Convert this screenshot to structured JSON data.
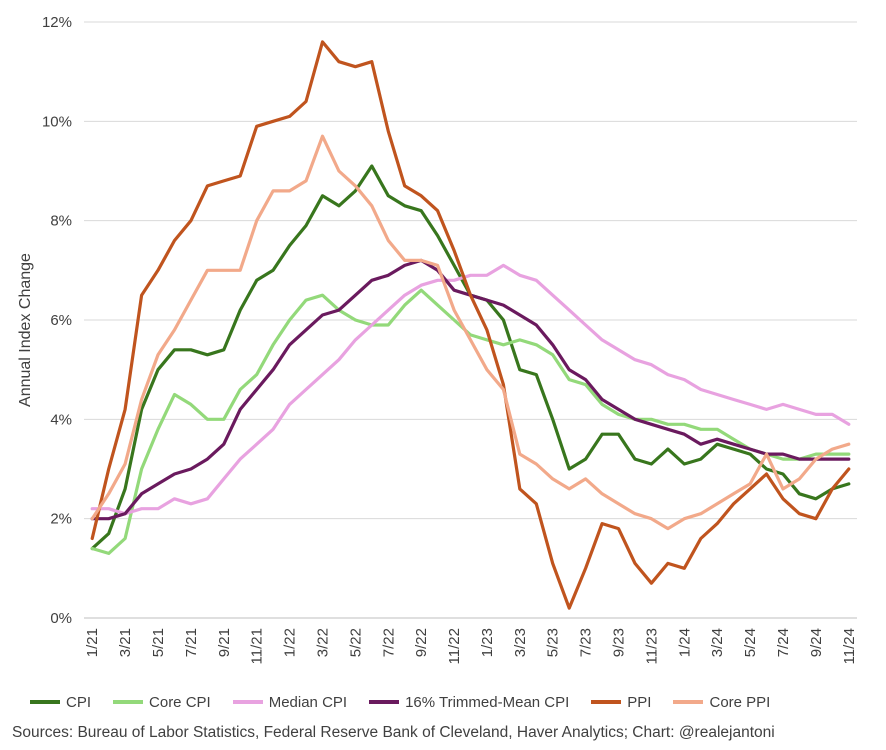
{
  "chart_data": {
    "type": "line",
    "ylabel": "Annual Index Change",
    "ylim": [
      0,
      12
    ],
    "yticks": [
      "0%",
      "2%",
      "4%",
      "6%",
      "8%",
      "10%",
      "12%"
    ],
    "grid": true,
    "legend_position": "bottom",
    "x": [
      "1/21",
      "2/21",
      "3/21",
      "4/21",
      "5/21",
      "6/21",
      "7/21",
      "8/21",
      "9/21",
      "10/21",
      "11/21",
      "12/21",
      "1/22",
      "2/22",
      "3/22",
      "4/22",
      "5/22",
      "6/22",
      "7/22",
      "8/22",
      "9/22",
      "10/22",
      "11/22",
      "12/22",
      "1/23",
      "2/23",
      "3/23",
      "4/23",
      "5/23",
      "6/23",
      "7/23",
      "8/23",
      "9/23",
      "10/23",
      "11/23",
      "12/23",
      "1/24",
      "2/24",
      "3/24",
      "4/24",
      "5/24",
      "6/24",
      "7/24",
      "8/24",
      "9/24",
      "10/24",
      "11/24"
    ],
    "xtick_labels": [
      "1/21",
      "3/21",
      "5/21",
      "7/21",
      "9/21",
      "11/21",
      "1/22",
      "3/22",
      "5/22",
      "7/22",
      "9/22",
      "11/22",
      "1/23",
      "3/23",
      "5/23",
      "7/23",
      "9/23",
      "11/23",
      "1/24",
      "3/24",
      "5/24",
      "7/24",
      "9/24",
      "11/24"
    ],
    "series": [
      {
        "name": "CPI",
        "color": "#38761d",
        "values": [
          1.4,
          1.7,
          2.6,
          4.2,
          5.0,
          5.4,
          5.4,
          5.3,
          5.4,
          6.2,
          6.8,
          7.0,
          7.5,
          7.9,
          8.5,
          8.3,
          8.6,
          9.1,
          8.5,
          8.3,
          8.2,
          7.7,
          7.1,
          6.5,
          6.4,
          6.0,
          5.0,
          4.9,
          4.0,
          3.0,
          3.2,
          3.7,
          3.7,
          3.2,
          3.1,
          3.4,
          3.1,
          3.2,
          3.5,
          3.4,
          3.3,
          3.0,
          2.9,
          2.5,
          2.4,
          2.6,
          2.7
        ]
      },
      {
        "name": "Core CPI",
        "color": "#93d97a",
        "values": [
          1.4,
          1.3,
          1.6,
          3.0,
          3.8,
          4.5,
          4.3,
          4.0,
          4.0,
          4.6,
          4.9,
          5.5,
          6.0,
          6.4,
          6.5,
          6.2,
          6.0,
          5.9,
          5.9,
          6.3,
          6.6,
          6.3,
          6.0,
          5.7,
          5.6,
          5.5,
          5.6,
          5.5,
          5.3,
          4.8,
          4.7,
          4.3,
          4.1,
          4.0,
          4.0,
          3.9,
          3.9,
          3.8,
          3.8,
          3.6,
          3.4,
          3.3,
          3.2,
          3.2,
          3.3,
          3.3,
          3.3
        ]
      },
      {
        "name": "Median CPI",
        "color": "#e8a2e0",
        "values": [
          2.2,
          2.2,
          2.1,
          2.2,
          2.2,
          2.4,
          2.3,
          2.4,
          2.8,
          3.2,
          3.5,
          3.8,
          4.3,
          4.6,
          4.9,
          5.2,
          5.6,
          5.9,
          6.2,
          6.5,
          6.7,
          6.8,
          6.8,
          6.9,
          6.9,
          7.1,
          6.9,
          6.8,
          6.5,
          6.2,
          5.9,
          5.6,
          5.4,
          5.2,
          5.1,
          4.9,
          4.8,
          4.6,
          4.5,
          4.4,
          4.3,
          4.2,
          4.3,
          4.2,
          4.1,
          4.1,
          3.9
        ]
      },
      {
        "name": "16% Trimmed-Mean CPI",
        "color": "#6a1a5e",
        "values": [
          2.0,
          2.0,
          2.1,
          2.5,
          2.7,
          2.9,
          3.0,
          3.2,
          3.5,
          4.2,
          4.6,
          5.0,
          5.5,
          5.8,
          6.1,
          6.2,
          6.5,
          6.8,
          6.9,
          7.1,
          7.2,
          7.0,
          6.6,
          6.5,
          6.4,
          6.3,
          6.1,
          5.9,
          5.5,
          5.0,
          4.8,
          4.4,
          4.2,
          4.0,
          3.9,
          3.8,
          3.7,
          3.5,
          3.6,
          3.5,
          3.4,
          3.3,
          3.3,
          3.2,
          3.2,
          3.2,
          3.2
        ]
      },
      {
        "name": "PPI",
        "color": "#c0541e",
        "values": [
          1.6,
          3.0,
          4.2,
          6.5,
          7.0,
          7.6,
          8.0,
          8.7,
          8.8,
          8.9,
          9.9,
          10.0,
          10.1,
          10.4,
          11.6,
          11.2,
          11.1,
          11.2,
          9.8,
          8.7,
          8.5,
          8.2,
          7.4,
          6.5,
          5.8,
          4.7,
          2.6,
          2.3,
          1.1,
          0.2,
          1.0,
          1.9,
          1.8,
          1.1,
          0.7,
          1.1,
          1.0,
          1.6,
          1.9,
          2.3,
          2.6,
          2.9,
          2.4,
          2.1,
          2.0,
          2.6,
          3.0
        ]
      },
      {
        "name": "Core PPI",
        "color": "#f2a98a",
        "values": [
          2.0,
          2.5,
          3.1,
          4.4,
          5.3,
          5.8,
          6.4,
          7.0,
          7.0,
          7.0,
          8.0,
          8.6,
          8.6,
          8.8,
          9.7,
          9.0,
          8.7,
          8.3,
          7.6,
          7.2,
          7.2,
          7.1,
          6.2,
          5.6,
          5.0,
          4.6,
          3.3,
          3.1,
          2.8,
          2.6,
          2.8,
          2.5,
          2.3,
          2.1,
          2.0,
          1.8,
          2.0,
          2.1,
          2.3,
          2.5,
          2.7,
          3.3,
          2.6,
          2.8,
          3.2,
          3.4,
          3.5
        ]
      }
    ]
  },
  "source_text": "Sources: Bureau of Labor Statistics, Federal Reserve Bank of Cleveland, Haver Analytics; Chart: @realejantoni"
}
